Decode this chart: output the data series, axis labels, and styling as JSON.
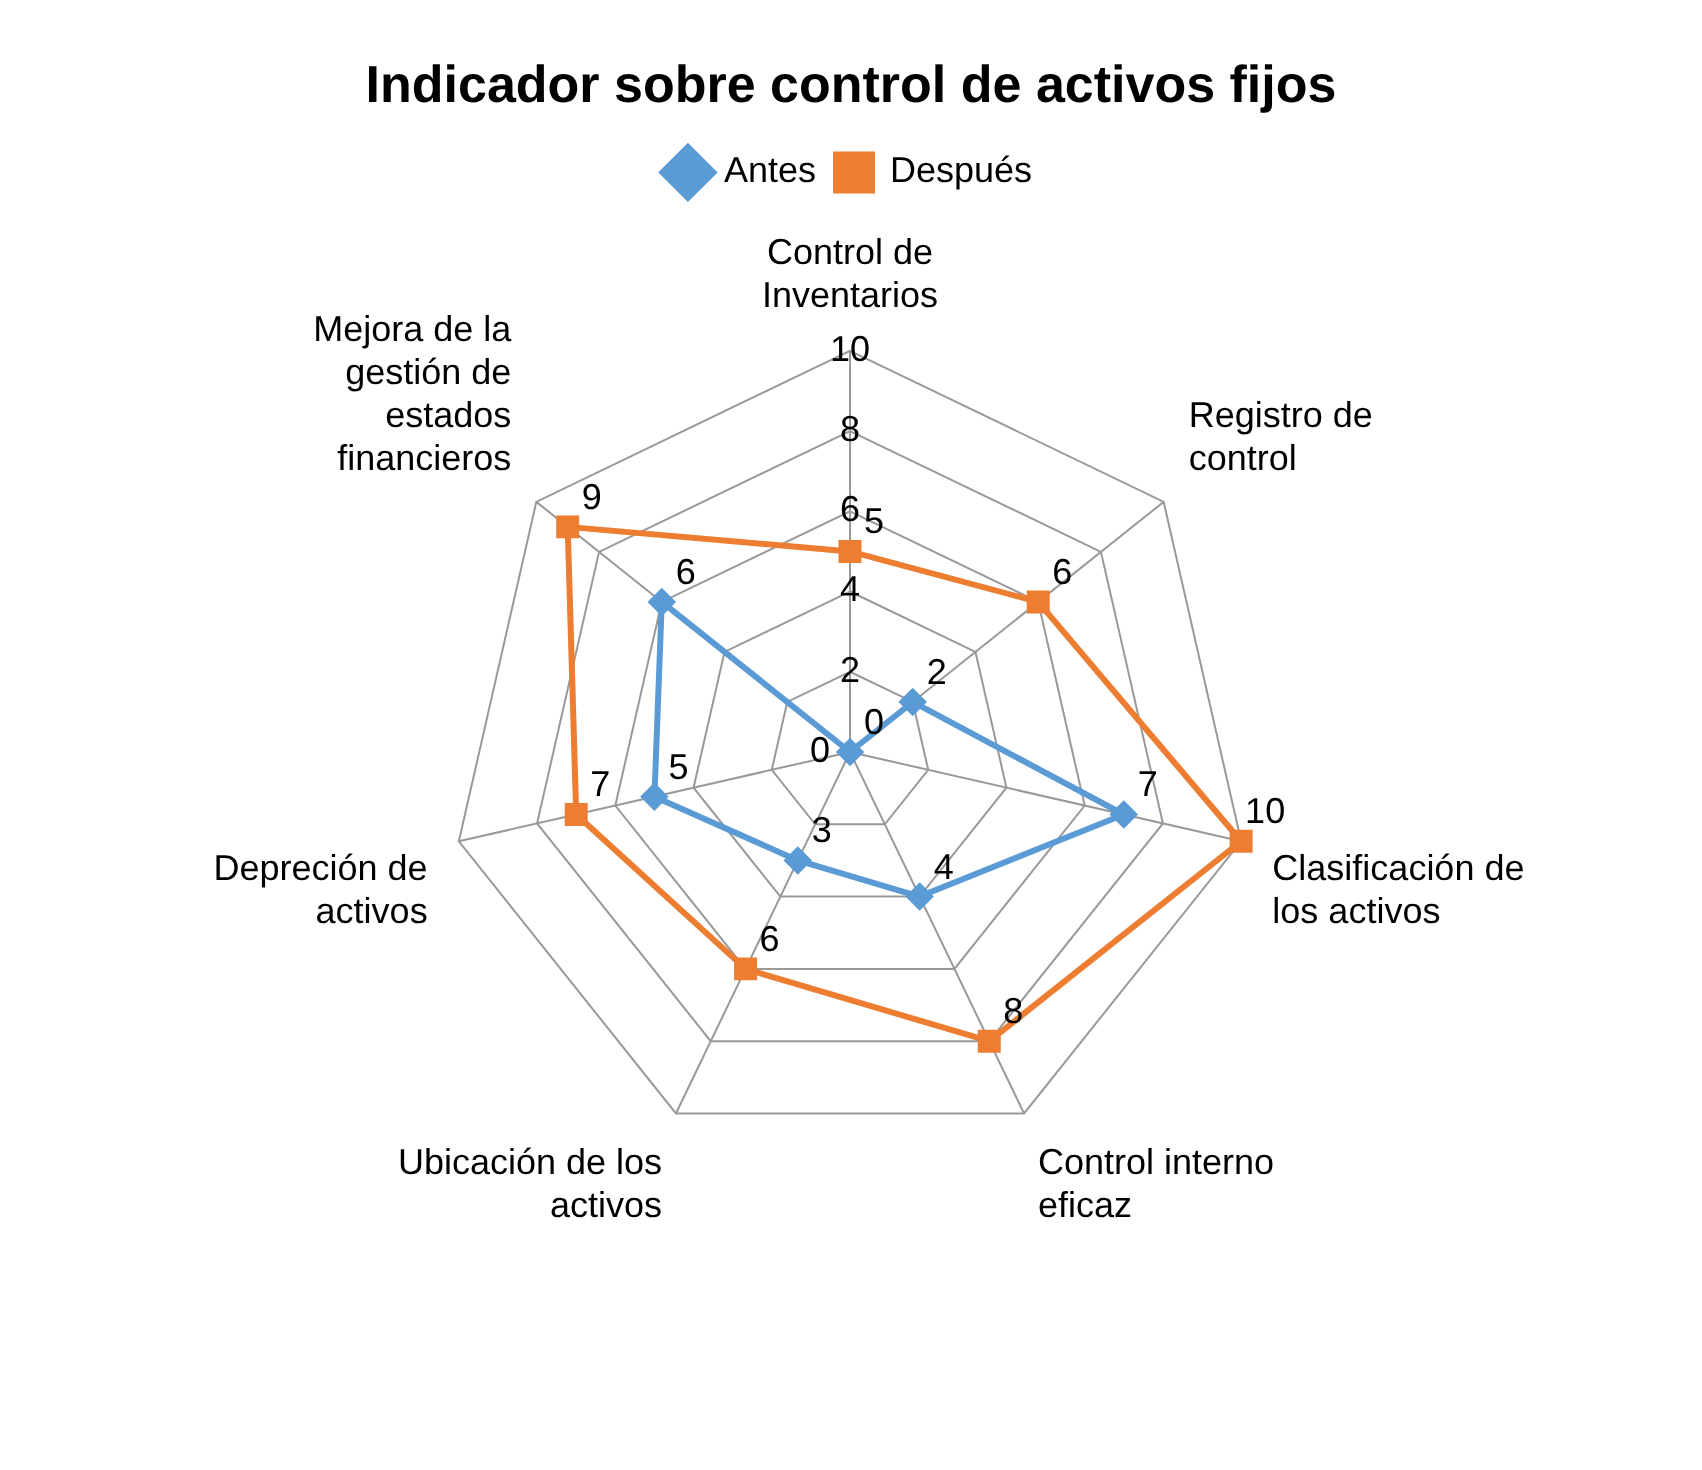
{
  "chart_data": {
    "type": "radar",
    "title": "Indicador sobre control de activos fijos",
    "categories": [
      "Control de Inventarios",
      "Registro de control",
      "Clasificación de los activos",
      "Control interno eficaz",
      "Ubicación de los activos",
      "Depreción de activos",
      "Mejora de la gestión de estados financieros"
    ],
    "series": [
      {
        "name": "Antes",
        "color": "#5b9bd5",
        "marker": "diamond",
        "values": [
          0,
          2,
          7,
          4,
          3,
          5,
          6
        ]
      },
      {
        "name": "Después",
        "color": "#ed7d31",
        "marker": "square",
        "values": [
          5,
          6,
          10,
          8,
          6,
          7,
          9
        ]
      }
    ],
    "ylim": [
      0,
      10
    ],
    "yticks": [
      0,
      2,
      4,
      6,
      8,
      10
    ],
    "grid": true,
    "legend": "top",
    "data_labels": true
  }
}
